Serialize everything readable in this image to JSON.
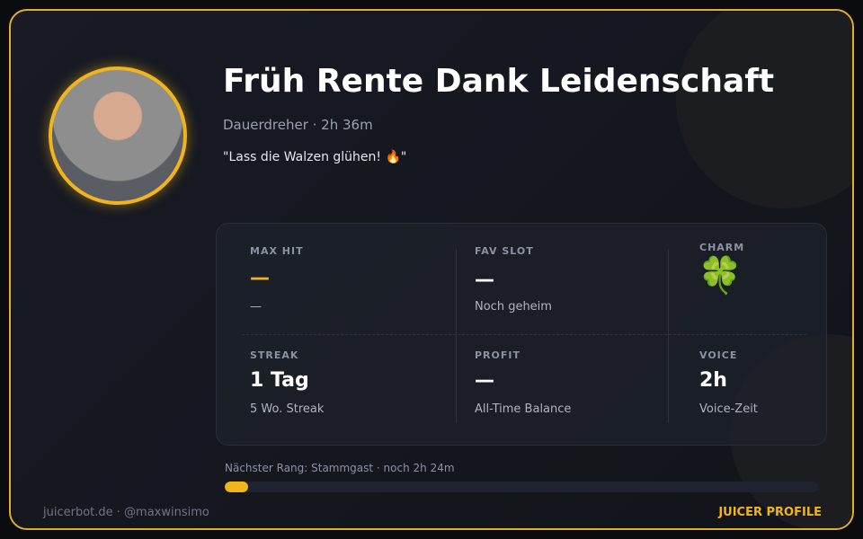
{
  "header": {
    "name": "Früh Rente Dank Leidenschaft",
    "subtitle": "Dauerdreher · 2h 36m",
    "quote": "\"Lass die Walzen glühen! 🔥\""
  },
  "stats": [
    {
      "label": "MAX HIT",
      "value": "—",
      "sub": "—"
    },
    {
      "label": "FAV SLOT",
      "value": "—",
      "sub": "Noch geheim"
    },
    {
      "label": "CHARM",
      "value": "🍀"
    },
    {
      "label": "STREAK",
      "value": "1 Tag",
      "sub": "5 Wo. Streak"
    },
    {
      "label": "PROFIT",
      "value": "—",
      "sub": "All-Time Balance"
    },
    {
      "label": "VOICE",
      "value": "2h",
      "sub": "Voice-Zeit"
    }
  ],
  "progress": {
    "text": "Nächster Rang: Stammgast · noch 2h 24m",
    "percent": 4
  },
  "footer": {
    "left": "juicerbot.de · @maxwinsimo",
    "right": "JUICER PROFILE"
  }
}
